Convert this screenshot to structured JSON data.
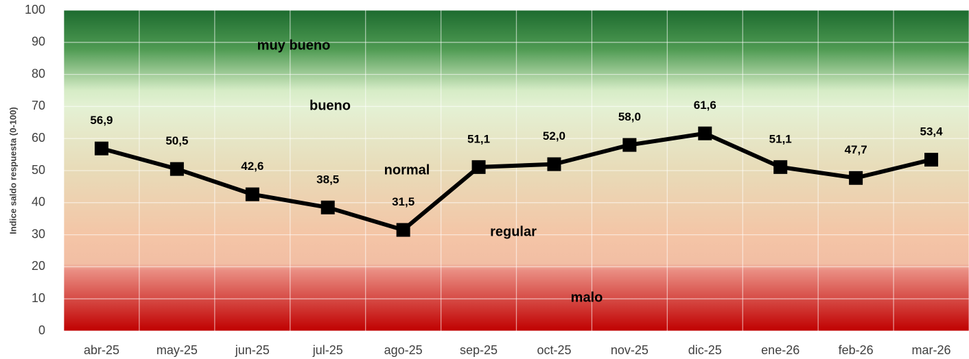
{
  "chart_data": {
    "type": "line",
    "y_label": "Indice saldo respuesta (0-100)",
    "categories": [
      "abr-25",
      "may-25",
      "jun-25",
      "jul-25",
      "ago-25",
      "sep-25",
      "oct-25",
      "nov-25",
      "dic-25",
      "ene-26",
      "feb-26",
      "mar-26"
    ],
    "series": [
      {
        "color": "#000000",
        "values": [
          56.9,
          50.5,
          42.6,
          38.5,
          31.5,
          51.1,
          52.0,
          58.0,
          61.6,
          51.1,
          47.7,
          53.4
        ],
        "value_labels": [
          "56,9",
          "50,5",
          "42,6",
          "38,5",
          "31,5",
          "51,1",
          "52,0",
          "58,0",
          "61,6",
          "51,1",
          "47,7",
          "53,4"
        ]
      }
    ],
    "ylim": [
      0,
      100
    ],
    "yticks": [
      0,
      10,
      20,
      30,
      40,
      50,
      60,
      70,
      80,
      90,
      100
    ],
    "grid": true,
    "annotations": [
      "muy bueno",
      "bueno",
      "normal",
      "regular",
      "malo"
    ]
  }
}
